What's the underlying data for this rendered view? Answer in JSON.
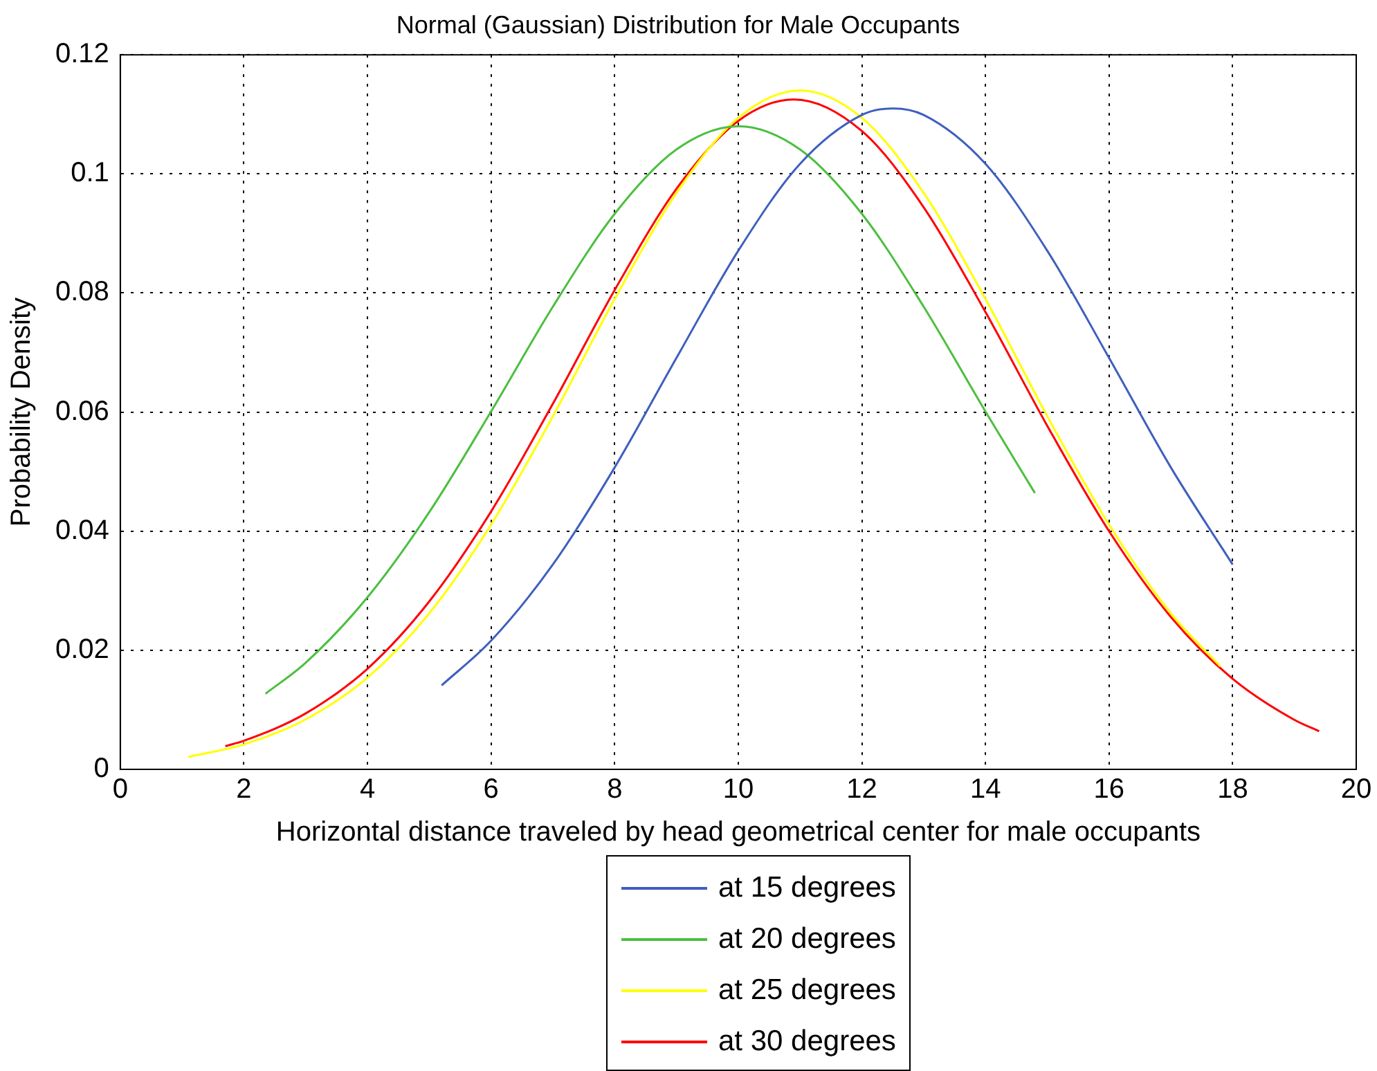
{
  "chart_data": {
    "type": "line",
    "title": "Normal (Gaussian) Distribution for Male Occupants",
    "xlabel": "Horizontal distance traveled by head geometrical center for male occupants",
    "ylabel": "Probability Density",
    "xlim": [
      0,
      20
    ],
    "xticks": [
      0,
      2,
      4,
      6,
      8,
      10,
      12,
      14,
      16,
      18,
      20
    ],
    "ylim": [
      0,
      0.12
    ],
    "yticks": [
      0,
      0.02,
      0.04,
      0.06,
      0.08,
      0.1,
      0.12
    ],
    "grid": true,
    "legend": "bottom",
    "marker": "none",
    "line_style": "solid",
    "series": [
      {
        "name": "at 15 degrees",
        "color": "#3f5fbf",
        "x": [
          5.2,
          6,
          7,
          8,
          9,
          10,
          11,
          12,
          12.5,
          13,
          14,
          15,
          16,
          17,
          18
        ],
        "values": [
          0.0141,
          0.0216,
          0.0344,
          0.0507,
          0.0691,
          0.0871,
          0.1017,
          0.1099,
          0.111,
          0.1099,
          0.1017,
          0.0871,
          0.0691,
          0.0507,
          0.0344
        ]
      },
      {
        "name": "at 20 degrees",
        "color": "#4cbf3f",
        "x": [
          2.35,
          3,
          4,
          5,
          6,
          7,
          8,
          9,
          10,
          11,
          12,
          13,
          14,
          14.8
        ],
        "values": [
          0.0127,
          0.0179,
          0.0289,
          0.0432,
          0.0601,
          0.0777,
          0.0933,
          0.1041,
          0.108,
          0.1041,
          0.0933,
          0.0777,
          0.0601,
          0.0464
        ]
      },
      {
        "name": "at 25 degrees",
        "color": "#ffff00",
        "x": [
          1.1,
          2,
          3,
          4,
          5,
          6,
          7,
          8,
          9,
          10,
          11,
          12,
          13,
          14,
          15,
          16,
          17,
          17.8
        ],
        "values": [
          0.0021,
          0.0042,
          0.0084,
          0.0154,
          0.0262,
          0.0411,
          0.0593,
          0.079,
          0.0968,
          0.1094,
          0.114,
          0.1094,
          0.0968,
          0.079,
          0.0593,
          0.0411,
          0.0262,
          0.0173
        ]
      },
      {
        "name": "at 30 degrees",
        "color": "#ff0000",
        "x": [
          1.7,
          2,
          3,
          4,
          5,
          6,
          7,
          8,
          9,
          10,
          10.9,
          12,
          13,
          14,
          15,
          16,
          17,
          18,
          19,
          19.4
        ],
        "values": [
          0.0039,
          0.0048,
          0.0094,
          0.0169,
          0.0282,
          0.0433,
          0.0614,
          0.0805,
          0.0975,
          0.1089,
          0.1125,
          0.1072,
          0.0944,
          0.0768,
          0.0577,
          0.04,
          0.0256,
          0.0152,
          0.0083,
          0.0064
        ]
      }
    ]
  }
}
